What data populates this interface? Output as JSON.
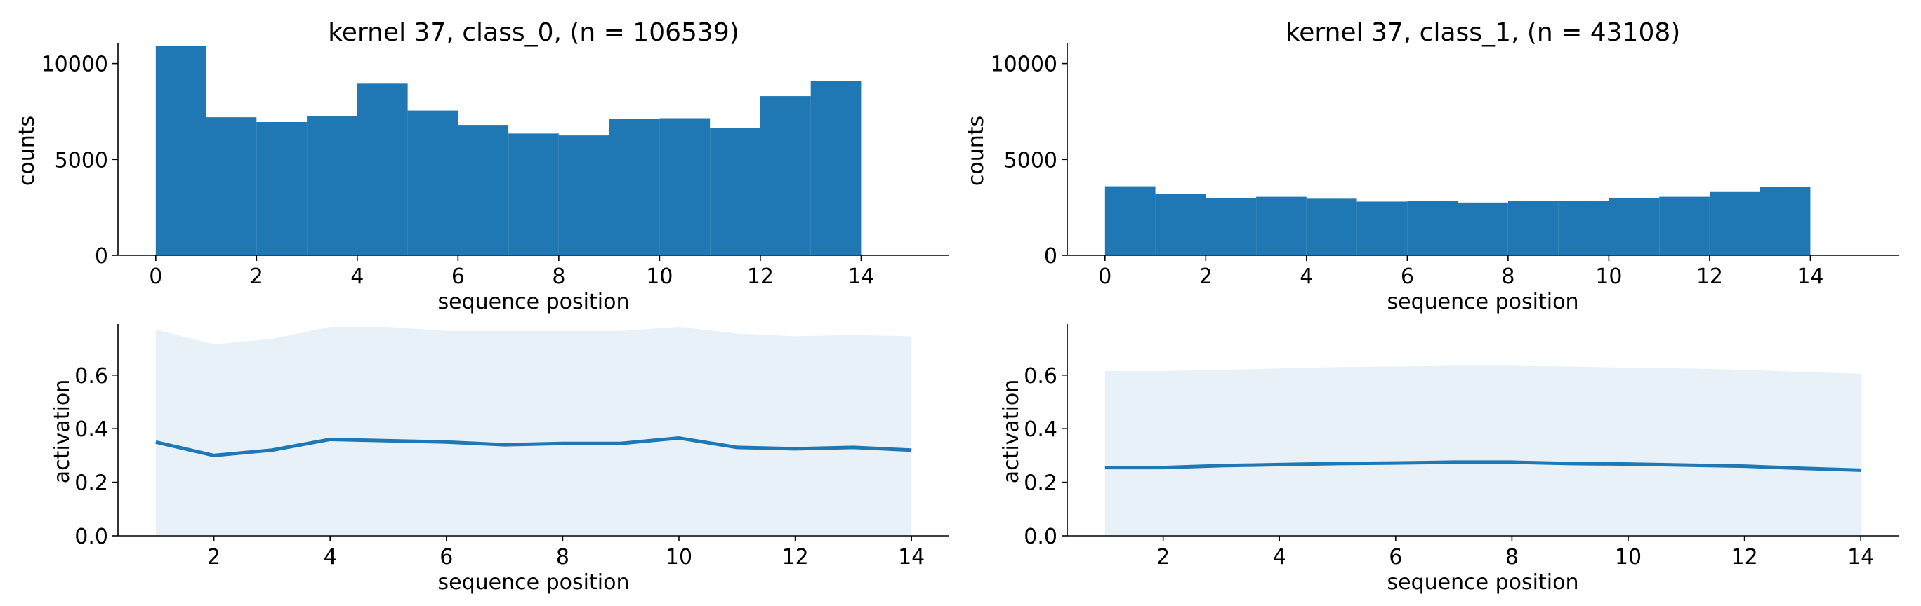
{
  "colors": {
    "bar": "#1f77b4",
    "line": "#1f77b4",
    "band": "#1f77b4",
    "band_opacity": 0.1
  },
  "chart_data": [
    {
      "type": "bar",
      "title": "kernel 37, class_0, (n = 106539)",
      "xlabel": "sequence position",
      "ylabel": "counts",
      "xlim": [
        -0.75,
        15.75
      ],
      "ylim": [
        0,
        10900
      ],
      "xticks": [
        0,
        2,
        4,
        6,
        8,
        10,
        12,
        14
      ],
      "yticks": [
        0,
        5000,
        10000
      ],
      "bin_edges": [
        0,
        1,
        2,
        3,
        4,
        5,
        6,
        7,
        8,
        9,
        10,
        11,
        12,
        13,
        14
      ],
      "values": [
        10900,
        7200,
        6950,
        7250,
        8950,
        7550,
        6800,
        6350,
        6250,
        7100,
        7150,
        6650,
        8300,
        9100
      ]
    },
    {
      "type": "bar",
      "title": "kernel 37, class_1, (n = 43108)",
      "xlabel": "sequence position",
      "ylabel": "counts",
      "xlim": [
        -0.75,
        15.75
      ],
      "ylim": [
        0,
        10900
      ],
      "xticks": [
        0,
        2,
        4,
        6,
        8,
        10,
        12,
        14
      ],
      "yticks": [
        0,
        5000,
        10000
      ],
      "bin_edges": [
        0,
        1,
        2,
        3,
        4,
        5,
        6,
        7,
        8,
        9,
        10,
        11,
        12,
        13,
        14
      ],
      "values": [
        3600,
        3200,
        3000,
        3050,
        2950,
        2800,
        2850,
        2750,
        2850,
        2850,
        3000,
        3050,
        3300,
        3550
      ]
    },
    {
      "type": "area",
      "title": "",
      "xlabel": "sequence position",
      "ylabel": "activation",
      "xlim": [
        0.35,
        14.65
      ],
      "ylim": [
        0,
        0.78
      ],
      "xticks": [
        2,
        4,
        6,
        8,
        10,
        12,
        14
      ],
      "yticks": [
        "0.0",
        "0.2",
        "0.4",
        "0.6"
      ],
      "x": [
        1,
        2,
        3,
        4,
        5,
        6,
        7,
        8,
        9,
        10,
        11,
        12,
        13,
        14
      ],
      "series": [
        {
          "kind": "line",
          "values": [
            0.35,
            0.3,
            0.32,
            0.36,
            0.355,
            0.35,
            0.34,
            0.345,
            0.345,
            0.365,
            0.33,
            0.325,
            0.33,
            0.32
          ]
        },
        {
          "kind": "band",
          "lower": [
            0,
            0,
            0,
            0,
            0,
            0,
            0,
            0,
            0,
            0,
            0,
            0,
            0,
            0
          ],
          "upper": [
            0.77,
            0.715,
            0.735,
            0.78,
            0.78,
            0.765,
            0.765,
            0.765,
            0.765,
            0.78,
            0.755,
            0.745,
            0.75,
            0.745
          ]
        }
      ]
    },
    {
      "type": "area",
      "title": "",
      "xlabel": "sequence position",
      "ylabel": "activation",
      "xlim": [
        0.35,
        14.65
      ],
      "ylim": [
        0,
        0.78
      ],
      "xticks": [
        2,
        4,
        6,
        8,
        10,
        12,
        14
      ],
      "yticks": [
        "0.0",
        "0.2",
        "0.4",
        "0.6"
      ],
      "x": [
        1,
        2,
        3,
        4,
        5,
        6,
        7,
        8,
        9,
        10,
        11,
        12,
        13,
        14
      ],
      "series": [
        {
          "kind": "line",
          "values": [
            0.255,
            0.255,
            0.262,
            0.266,
            0.27,
            0.272,
            0.275,
            0.275,
            0.27,
            0.268,
            0.264,
            0.26,
            0.252,
            0.245
          ]
        },
        {
          "kind": "band",
          "lower": [
            0,
            0,
            0,
            0,
            0,
            0,
            0,
            0,
            0,
            0,
            0,
            0,
            0,
            0
          ],
          "upper": [
            0.615,
            0.615,
            0.62,
            0.625,
            0.63,
            0.632,
            0.635,
            0.635,
            0.632,
            0.628,
            0.625,
            0.62,
            0.612,
            0.605
          ]
        }
      ]
    }
  ]
}
